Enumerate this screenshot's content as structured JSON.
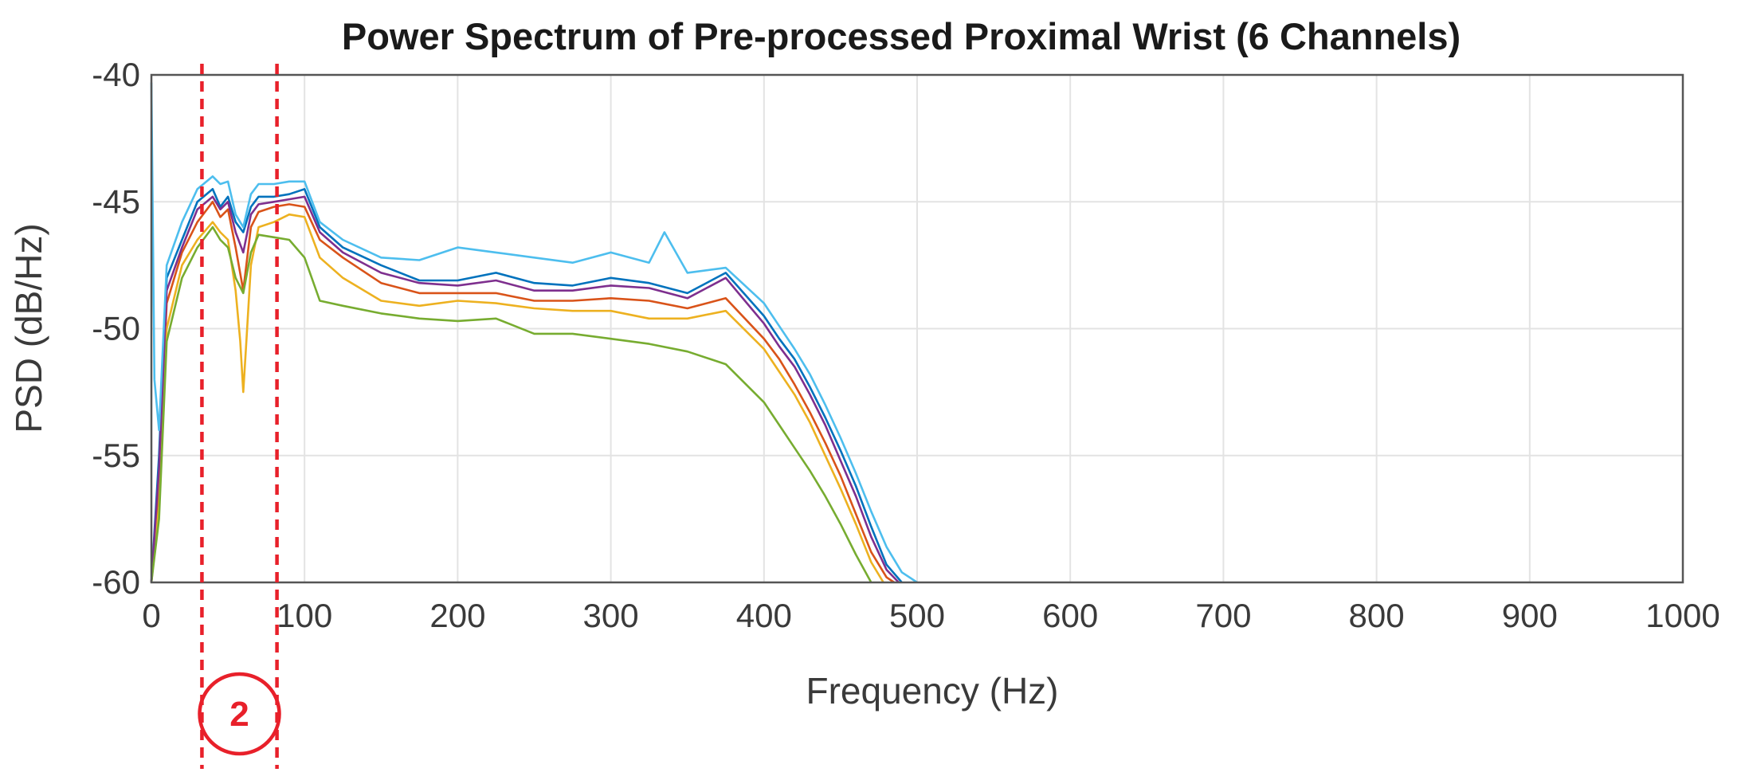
{
  "chart_data": {
    "type": "line",
    "title": "Power Spectrum of Pre-processed Proximal Wrist (6 Channels)",
    "xlabel": "Frequency (Hz)",
    "ylabel": "PSD (dB/Hz)",
    "xlim": [
      0,
      1000
    ],
    "ylim": [
      -60,
      -40
    ],
    "xticks": [
      0,
      100,
      200,
      300,
      400,
      500,
      600,
      700,
      800,
      900,
      1000
    ],
    "yticks": [
      -40,
      -45,
      -50,
      -55,
      -60
    ],
    "grid": true,
    "legend": "none",
    "annotations": {
      "marker_lines_x": [
        33,
        82
      ],
      "badge_text": "2",
      "color": "#e8202a"
    },
    "series": [
      {
        "color": "#0072BD",
        "x": [
          0,
          5,
          10,
          20,
          30,
          40,
          45,
          50,
          55,
          60,
          65,
          70,
          80,
          90,
          100,
          110,
          125,
          150,
          175,
          200,
          225,
          250,
          275,
          300,
          325,
          350,
          375,
          400,
          410,
          420,
          430,
          440,
          450,
          460,
          470,
          480,
          490
        ],
        "y": [
          -60,
          -55,
          -48,
          -46.5,
          -45,
          -44.5,
          -45.2,
          -44.8,
          -45.8,
          -46.2,
          -45.2,
          -44.8,
          -44.8,
          -44.7,
          -44.5,
          -46,
          -46.8,
          -47.5,
          -48.1,
          -48.1,
          -47.8,
          -48.2,
          -48.3,
          -48,
          -48.2,
          -48.6,
          -47.8,
          -49.5,
          -50.4,
          -51.2,
          -52.3,
          -53.5,
          -54.8,
          -56.2,
          -57.8,
          -59.3,
          -60
        ]
      },
      {
        "color": "#D95319",
        "x": [
          0,
          5,
          10,
          20,
          30,
          40,
          45,
          50,
          55,
          60,
          65,
          70,
          80,
          90,
          100,
          110,
          125,
          150,
          175,
          200,
          225,
          250,
          275,
          300,
          325,
          350,
          375,
          400,
          410,
          420,
          430,
          440,
          450,
          460,
          470,
          480,
          485
        ],
        "y": [
          -60,
          -56,
          -49,
          -47,
          -45.8,
          -45,
          -45.6,
          -45.3,
          -46.8,
          -48.5,
          -46,
          -45.4,
          -45.2,
          -45.1,
          -45.2,
          -46.5,
          -47.2,
          -48.2,
          -48.6,
          -48.6,
          -48.6,
          -48.9,
          -48.9,
          -48.8,
          -48.9,
          -49.2,
          -48.8,
          -50.4,
          -51.2,
          -52.2,
          -53.3,
          -54.5,
          -55.8,
          -57.3,
          -58.8,
          -59.8,
          -60
        ]
      },
      {
        "color": "#EDB120",
        "x": [
          0,
          5,
          10,
          20,
          30,
          40,
          45,
          50,
          55,
          58,
          60,
          62,
          65,
          70,
          80,
          90,
          100,
          110,
          125,
          150,
          175,
          200,
          225,
          250,
          275,
          300,
          325,
          350,
          375,
          400,
          410,
          420,
          430,
          440,
          450,
          460,
          470,
          478
        ],
        "y": [
          -60,
          -57,
          -50,
          -47.5,
          -46.5,
          -45.8,
          -46.2,
          -46.5,
          -48.5,
          -50.5,
          -52.5,
          -50.5,
          -47.5,
          -46,
          -45.8,
          -45.5,
          -45.6,
          -47.2,
          -48,
          -48.9,
          -49.1,
          -48.9,
          -49,
          -49.2,
          -49.3,
          -49.3,
          -49.6,
          -49.6,
          -49.3,
          -50.8,
          -51.7,
          -52.6,
          -53.7,
          -55,
          -56.3,
          -57.7,
          -59.2,
          -60
        ]
      },
      {
        "color": "#7E2F8E",
        "x": [
          0,
          5,
          10,
          20,
          30,
          40,
          45,
          50,
          55,
          60,
          65,
          70,
          80,
          90,
          100,
          110,
          125,
          150,
          175,
          200,
          225,
          250,
          275,
          300,
          325,
          350,
          375,
          400,
          410,
          420,
          430,
          440,
          450,
          460,
          470,
          480,
          488
        ],
        "y": [
          -60,
          -55.5,
          -48.5,
          -46.8,
          -45.3,
          -44.8,
          -45.3,
          -45,
          -46.2,
          -47,
          -45.5,
          -45.1,
          -45,
          -44.9,
          -44.8,
          -46.2,
          -47,
          -47.8,
          -48.2,
          -48.3,
          -48.1,
          -48.5,
          -48.5,
          -48.3,
          -48.4,
          -48.8,
          -48,
          -49.8,
          -50.7,
          -51.5,
          -52.6,
          -53.8,
          -55.2,
          -56.6,
          -58.2,
          -59.5,
          -60
        ]
      },
      {
        "color": "#77AC30",
        "x": [
          0,
          5,
          10,
          20,
          30,
          40,
          45,
          50,
          55,
          60,
          65,
          70,
          80,
          90,
          100,
          110,
          125,
          150,
          175,
          200,
          225,
          250,
          275,
          300,
          325,
          350,
          375,
          400,
          410,
          420,
          430,
          440,
          450,
          460,
          470
        ],
        "y": [
          -60,
          -57.5,
          -50.5,
          -48,
          -46.8,
          -46,
          -46.5,
          -46.8,
          -48,
          -48.6,
          -47,
          -46.3,
          -46.4,
          -46.5,
          -47.2,
          -48.9,
          -49.1,
          -49.4,
          -49.6,
          -49.7,
          -49.6,
          -50.2,
          -50.2,
          -50.4,
          -50.6,
          -50.9,
          -51.4,
          -52.9,
          -53.8,
          -54.7,
          -55.6,
          -56.6,
          -57.7,
          -58.9,
          -60
        ]
      },
      {
        "color": "#4DBEEE",
        "x": [
          0,
          2,
          5,
          10,
          20,
          30,
          40,
          45,
          50,
          55,
          60,
          65,
          70,
          80,
          90,
          100,
          110,
          125,
          150,
          175,
          200,
          225,
          250,
          275,
          300,
          325,
          335,
          350,
          375,
          400,
          410,
          420,
          430,
          440,
          450,
          460,
          470,
          480,
          490,
          500
        ],
        "y": [
          -40.3,
          -52,
          -54,
          -47.5,
          -45.8,
          -44.5,
          -44,
          -44.3,
          -44.2,
          -45.5,
          -46,
          -44.7,
          -44.3,
          -44.3,
          -44.2,
          -44.2,
          -45.8,
          -46.5,
          -47.2,
          -47.3,
          -46.8,
          -47,
          -47.2,
          -47.4,
          -47,
          -47.4,
          -46.2,
          -47.8,
          -47.6,
          -49,
          -49.9,
          -50.8,
          -51.8,
          -53,
          -54.3,
          -55.7,
          -57.2,
          -58.6,
          -59.6,
          -60
        ]
      }
    ]
  }
}
